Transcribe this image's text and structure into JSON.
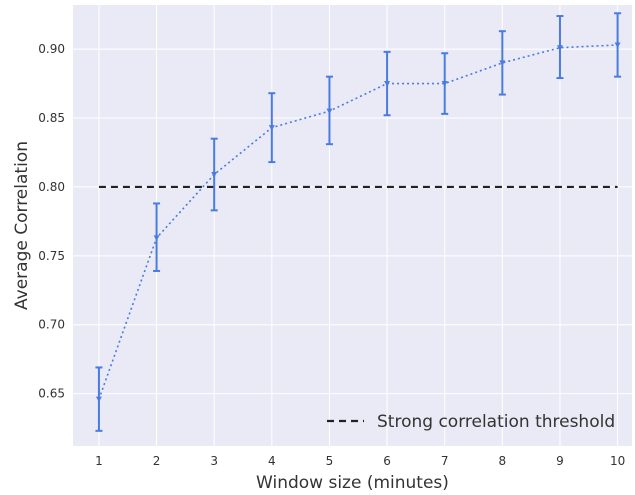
{
  "chart_data": {
    "type": "line",
    "xlabel": "Window size (minutes)",
    "ylabel": "Average Correlation",
    "xlim": [
      0.55,
      10.25
    ],
    "ylim": [
      0.612,
      0.932
    ],
    "x_ticks": [
      1,
      2,
      3,
      4,
      5,
      6,
      7,
      8,
      9,
      10
    ],
    "y_ticks": [
      0.65,
      0.7,
      0.75,
      0.8,
      0.85,
      0.9
    ],
    "y_tick_labels": [
      "0.65",
      "0.70",
      "0.75",
      "0.80",
      "0.85",
      "0.90"
    ],
    "grid": true,
    "legend_position": "lower-right",
    "series": [
      {
        "line_style": "dotted",
        "marker": "triangle-down",
        "color": "#4a7be0",
        "x": [
          1,
          2,
          3,
          4,
          5,
          6,
          7,
          8,
          9,
          10
        ],
        "y": [
          0.646,
          0.763,
          0.809,
          0.843,
          0.855,
          0.875,
          0.875,
          0.89,
          0.901,
          0.903
        ],
        "error_low": [
          0.623,
          0.739,
          0.783,
          0.818,
          0.831,
          0.852,
          0.853,
          0.867,
          0.879,
          0.88
        ],
        "error_high": [
          0.669,
          0.788,
          0.835,
          0.868,
          0.88,
          0.898,
          0.897,
          0.913,
          0.924,
          0.926
        ]
      }
    ],
    "reference_lines": [
      {
        "name": "Strong correlation threshold",
        "y": 0.8,
        "line_style": "dashed",
        "color": "#222222"
      }
    ]
  },
  "colors": {
    "plot_background": "#eaeaf6",
    "grid": "#ffffff",
    "series": "#4a7be0"
  }
}
